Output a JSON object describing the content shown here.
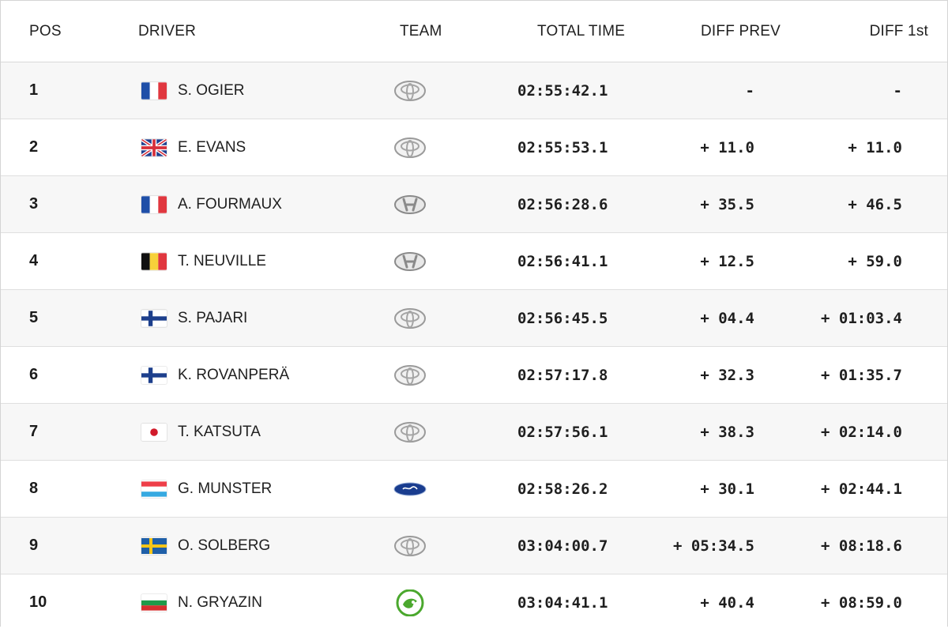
{
  "headers": {
    "pos": "POS",
    "driver": "DRIVER",
    "team": "TEAM",
    "total_time": "TOTAL TIME",
    "diff_prev": "DIFF PREV",
    "diff_first": "DIFF 1st"
  },
  "rows": [
    {
      "pos": "1",
      "driver": "S. OGIER",
      "flag": "france-flag-icon",
      "team_logo": "toyota-logo-icon",
      "total_time": "02:55:42.1",
      "diff_prev": "-",
      "diff_first": "-"
    },
    {
      "pos": "2",
      "driver": "E. EVANS",
      "flag": "uk-flag-icon",
      "team_logo": "toyota-logo-icon",
      "total_time": "02:55:53.1",
      "diff_prev": "+ 11.0",
      "diff_first": "+ 11.0"
    },
    {
      "pos": "3",
      "driver": "A. FOURMAUX",
      "flag": "france-flag-icon",
      "team_logo": "hyundai-logo-icon",
      "total_time": "02:56:28.6",
      "diff_prev": "+ 35.5",
      "diff_first": "+ 46.5"
    },
    {
      "pos": "4",
      "driver": "T. NEUVILLE",
      "flag": "belgium-flag-icon",
      "team_logo": "hyundai-logo-icon",
      "total_time": "02:56:41.1",
      "diff_prev": "+ 12.5",
      "diff_first": "+ 59.0"
    },
    {
      "pos": "5",
      "driver": "S. PAJARI",
      "flag": "finland-flag-icon",
      "team_logo": "toyota-logo-icon",
      "total_time": "02:56:45.5",
      "diff_prev": "+ 04.4",
      "diff_first": "+ 01:03.4"
    },
    {
      "pos": "6",
      "driver": "K. ROVANPERÄ",
      "flag": "finland-flag-icon",
      "team_logo": "toyota-logo-icon",
      "total_time": "02:57:17.8",
      "diff_prev": "+ 32.3",
      "diff_first": "+ 01:35.7"
    },
    {
      "pos": "7",
      "driver": "T. KATSUTA",
      "flag": "japan-flag-icon",
      "team_logo": "toyota-logo-icon",
      "total_time": "02:57:56.1",
      "diff_prev": "+ 38.3",
      "diff_first": "+ 02:14.0"
    },
    {
      "pos": "8",
      "driver": "G. MUNSTER",
      "flag": "luxembourg-flag-icon",
      "team_logo": "ford-logo-icon",
      "total_time": "02:58:26.2",
      "diff_prev": "+ 30.1",
      "diff_first": "+ 02:44.1"
    },
    {
      "pos": "9",
      "driver": "O. SOLBERG",
      "flag": "sweden-flag-icon",
      "team_logo": "toyota-logo-icon",
      "total_time": "03:04:00.7",
      "diff_prev": "+ 05:34.5",
      "diff_first": "+ 08:18.6"
    },
    {
      "pos": "10",
      "driver": "N. GRYAZIN",
      "flag": "bulgaria-flag-icon",
      "team_logo": "skoda-logo-icon",
      "total_time": "03:04:41.1",
      "diff_prev": "+ 40.4",
      "diff_first": "+ 08:59.0"
    }
  ],
  "colors": {
    "row_alt_bg": "#f7f7f7",
    "border": "#dfdfdf",
    "text": "#1b1b1b",
    "ford_blue": "#1a3d8f",
    "skoda_green": "#4ba82e"
  }
}
